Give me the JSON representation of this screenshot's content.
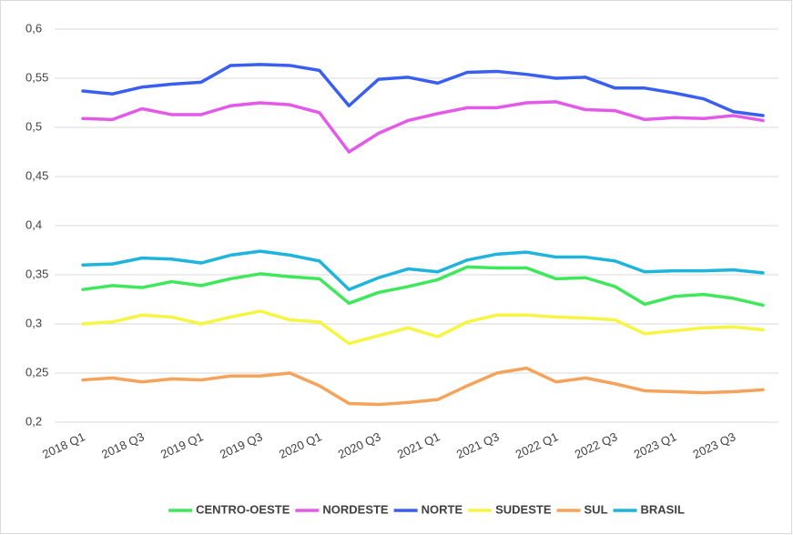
{
  "chart_data": {
    "type": "line",
    "categories": [
      "2018 Q1",
      null,
      "2018 Q3",
      null,
      "2019 Q1",
      null,
      "2019 Q3",
      null,
      "2020 Q1",
      null,
      "2020 Q3",
      null,
      "2021 Q1",
      null,
      "2021 Q3",
      null,
      "2022 Q1",
      null,
      "2022 Q3",
      null,
      "2023 Q1",
      null,
      "2023 Q3",
      null
    ],
    "series": [
      {
        "name": "CENTRO-OESTE",
        "color": "#3ee85a",
        "values": [
          0.335,
          0.339,
          0.337,
          0.343,
          0.339,
          0.346,
          0.351,
          0.348,
          0.346,
          0.321,
          0.332,
          0.338,
          0.345,
          0.358,
          0.357,
          0.357,
          0.346,
          0.347,
          0.338,
          0.32,
          0.328,
          0.33,
          0.326,
          0.319
        ]
      },
      {
        "name": "NORDESTE",
        "color": "#e35ae8",
        "values": [
          0.509,
          0.508,
          0.519,
          0.513,
          0.513,
          0.522,
          0.525,
          0.523,
          0.515,
          0.475,
          0.494,
          0.507,
          0.514,
          0.52,
          0.52,
          0.525,
          0.526,
          0.518,
          0.517,
          0.508,
          0.51,
          0.509,
          0.512,
          0.507
        ]
      },
      {
        "name": "NORTE",
        "color": "#3a5ff0",
        "values": [
          0.537,
          0.534,
          0.541,
          0.544,
          0.546,
          0.563,
          0.564,
          0.563,
          0.558,
          0.522,
          0.549,
          0.551,
          0.545,
          0.556,
          0.557,
          0.554,
          0.55,
          0.551,
          0.54,
          0.54,
          0.535,
          0.529,
          0.516,
          0.512
        ]
      },
      {
        "name": "SUDESTE",
        "color": "#f5f542",
        "values": [
          0.3,
          0.302,
          0.309,
          0.307,
          0.3,
          0.307,
          0.313,
          0.304,
          0.302,
          0.28,
          0.288,
          0.296,
          0.287,
          0.302,
          0.309,
          0.309,
          0.307,
          0.306,
          0.304,
          0.29,
          0.293,
          0.296,
          0.297,
          0.294
        ]
      },
      {
        "name": "SUL",
        "color": "#f5a35a",
        "values": [
          0.243,
          0.245,
          0.241,
          0.244,
          0.243,
          0.247,
          0.247,
          0.25,
          0.237,
          0.219,
          0.218,
          0.22,
          0.223,
          0.237,
          0.25,
          0.255,
          0.241,
          0.245,
          0.239,
          0.232,
          0.231,
          0.23,
          0.231,
          0.233
        ]
      },
      {
        "name": "BRASIL",
        "color": "#1eb4dc",
        "values": [
          0.36,
          0.361,
          0.367,
          0.366,
          0.362,
          0.37,
          0.374,
          0.37,
          0.364,
          0.335,
          0.347,
          0.356,
          0.353,
          0.365,
          0.371,
          0.373,
          0.368,
          0.368,
          0.364,
          0.353,
          0.354,
          0.354,
          0.355,
          0.352
        ]
      }
    ],
    "ylim": [
      0.2,
      0.6
    ],
    "yticks": [
      {
        "value": 0.2,
        "label": "0,2"
      },
      {
        "value": 0.25,
        "label": "0,25"
      },
      {
        "value": 0.3,
        "label": "0,3"
      },
      {
        "value": 0.35,
        "label": "0,35"
      },
      {
        "value": 0.4,
        "label": "0,4"
      },
      {
        "value": 0.45,
        "label": "0,45"
      },
      {
        "value": 0.5,
        "label": "0,5"
      },
      {
        "value": 0.55,
        "label": "0,55"
      },
      {
        "value": 0.6,
        "label": "0,6"
      }
    ],
    "grid": true,
    "legend": "bottom"
  }
}
